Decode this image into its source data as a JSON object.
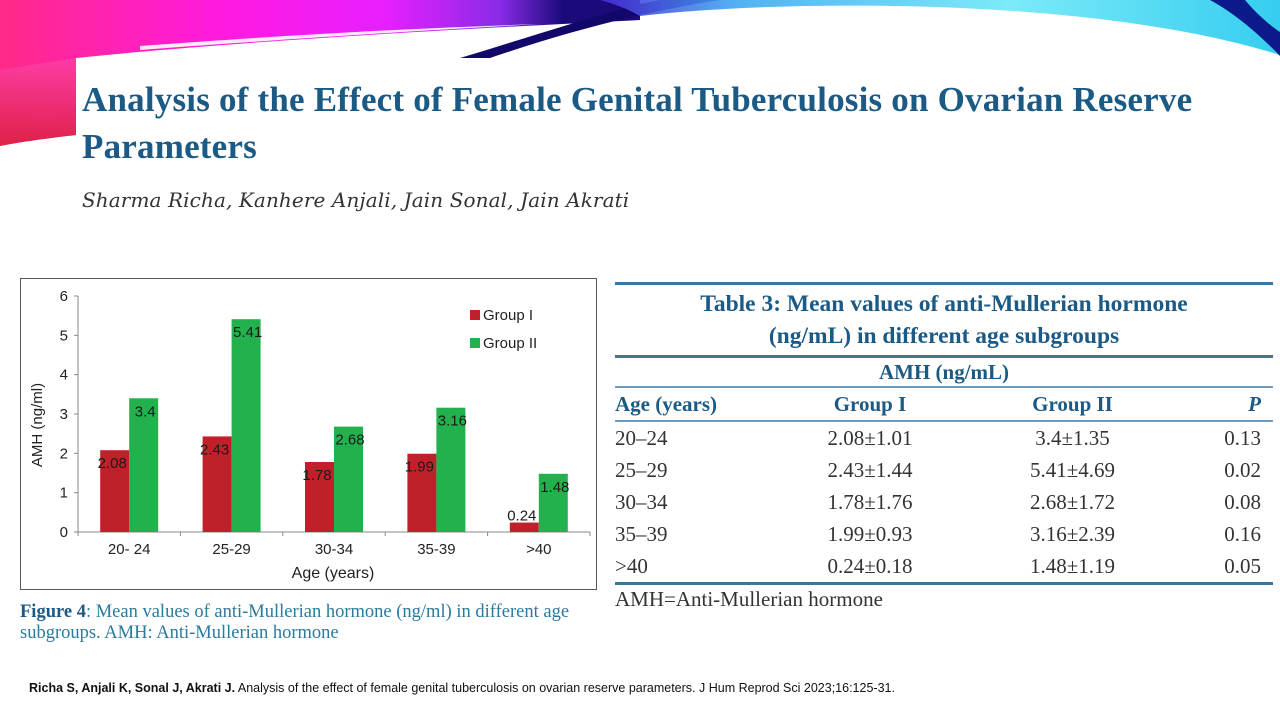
{
  "slide": {
    "title": "Analysis of the Effect of Female Genital Tuberculosis on Ovarian Reserve Parameters",
    "authors": "Sharma Richa, Kanhere Anjali, Jain Sonal, Jain Akrati",
    "colors": {
      "title": "#1b5a85",
      "caption": "#2a7a9e",
      "banner_left": "#ff1fa8",
      "banner_mid": "#2a0a8a",
      "banner_right": "#2fd4f0"
    }
  },
  "figure": {
    "caption_label": "Figure 4",
    "caption_text": ": Mean values of anti-Mullerian hormone (ng/ml) in different age subgroups. AMH: Anti-Mullerian hormone"
  },
  "chart_data": {
    "type": "bar",
    "title": "",
    "xlabel": "Age (years)",
    "ylabel": "AMH (ng/ml)",
    "ylim": [
      0,
      6
    ],
    "yticks": [
      0,
      1,
      2,
      3,
      4,
      5,
      6
    ],
    "grid": false,
    "legend_position": "top-right",
    "categories": [
      "20- 24",
      "25-29",
      "30-34",
      "35-39",
      ">40"
    ],
    "series": [
      {
        "name": "Group I",
        "color": "#c0202a",
        "values": [
          2.08,
          2.43,
          1.78,
          1.99,
          0.24
        ],
        "labels": [
          "2.08",
          "2.43",
          "1.78",
          "1.99",
          "0.24"
        ]
      },
      {
        "name": "Group II",
        "color": "#22b14c",
        "values": [
          3.4,
          5.41,
          2.68,
          3.16,
          1.48
        ],
        "labels": [
          "3.4",
          "5.41",
          "2.68",
          "3.16",
          "1.48"
        ]
      }
    ]
  },
  "table": {
    "title_line1": "Table 3: Mean values of anti-Mullerian hormone",
    "title_line2": "(ng/mL) in different age subgroups",
    "group_header": "AMH (ng/mL)",
    "columns": [
      "Age (years)",
      "Group I",
      "Group II",
      "P"
    ],
    "rows": [
      [
        "20–24",
        "2.08±1.01",
        "3.4±1.35",
        "0.13"
      ],
      [
        "25–29",
        "2.43±1.44",
        "5.41±4.69",
        "0.02"
      ],
      [
        "30–34",
        "1.78±1.76",
        "2.68±1.72",
        "0.08"
      ],
      [
        "35–39",
        "1.99±0.93",
        "3.16±2.39",
        "0.16"
      ],
      [
        ">40",
        "0.24±0.18",
        "1.48±1.19",
        "0.05"
      ]
    ],
    "footnote": "AMH=Anti-Mullerian hormone"
  },
  "citation": {
    "authors": "Richa S, Anjali K, Sonal J, Akrati J.",
    "text": " Analysis of the effect of female genital tuberculosis on ovarian reserve parameters. J Hum Reprod Sci 2023;16:125-31."
  }
}
